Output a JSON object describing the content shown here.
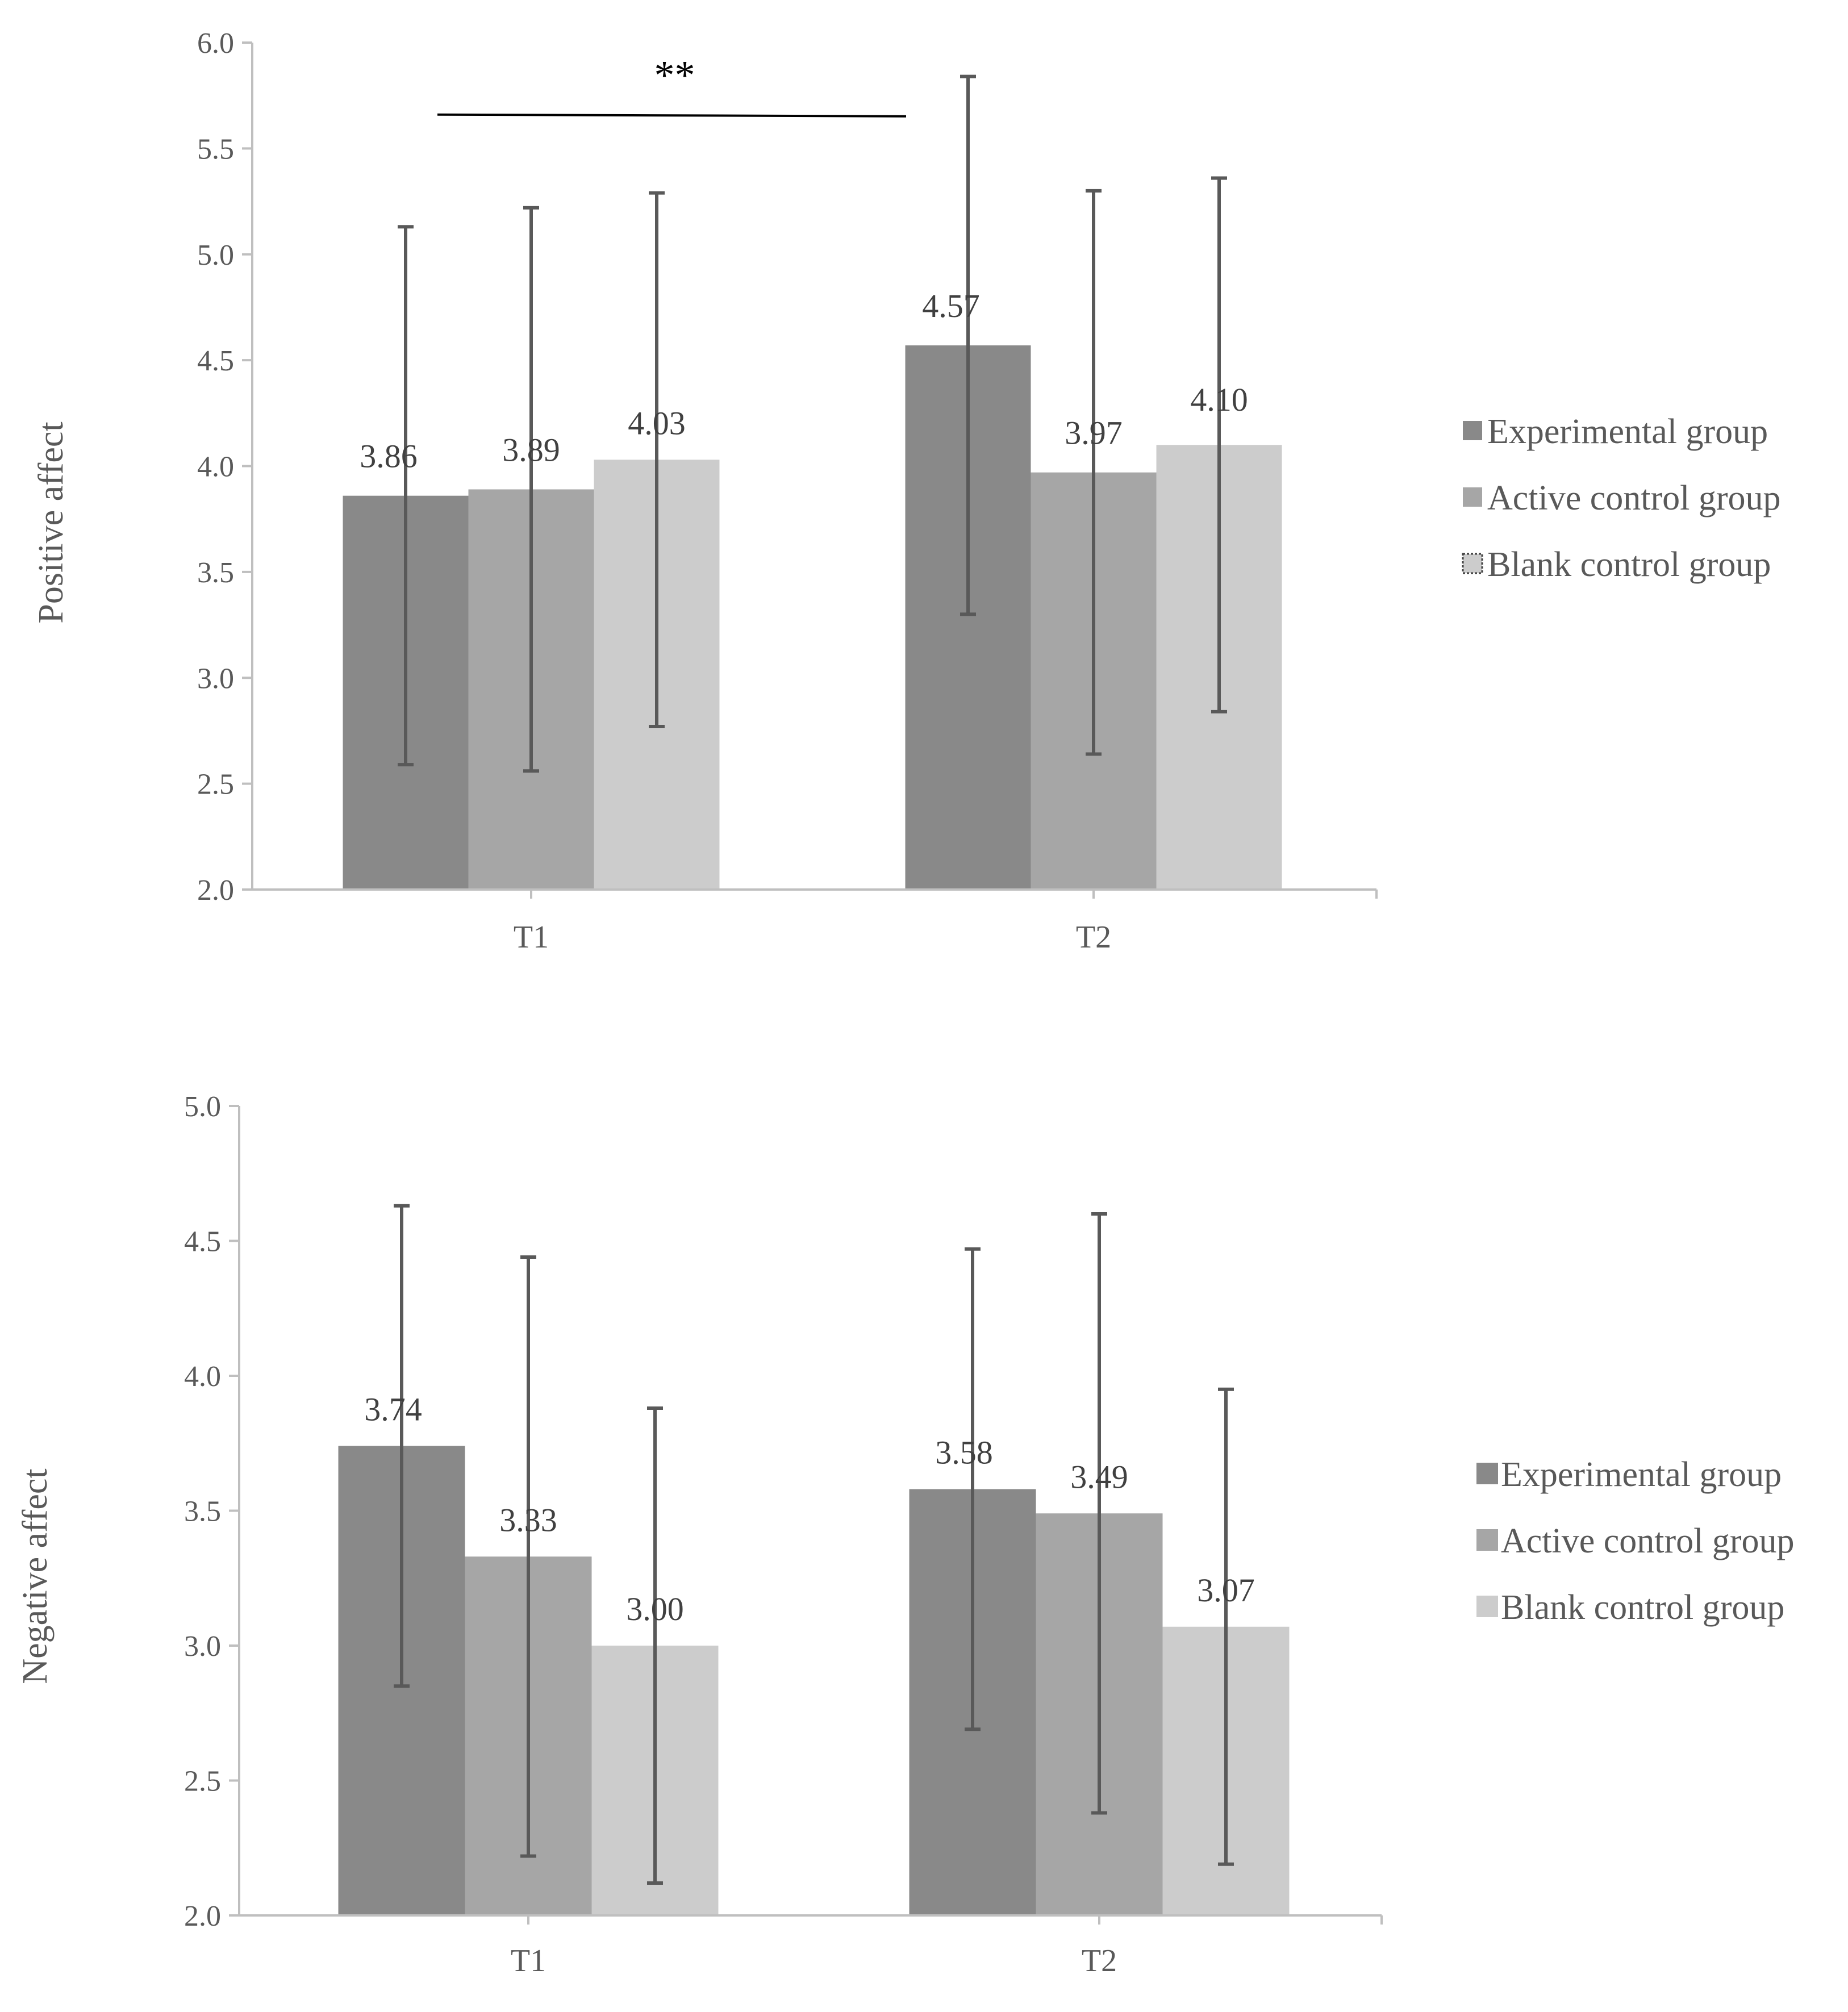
{
  "chart_data": [
    {
      "type": "bar",
      "ylabel": "Positive affect",
      "xlabel": "",
      "ylim": [
        2.0,
        6.0
      ],
      "yticks": [
        "2.0",
        "2.5",
        "3.0",
        "3.5",
        "4.0",
        "4.5",
        "5.0",
        "5.5",
        "6.0"
      ],
      "categories": [
        "T1",
        "T2"
      ],
      "series": [
        {
          "name": "Experimental group",
          "color": "#898989",
          "values": [
            3.86,
            4.57
          ],
          "labels": [
            "3.86",
            "4.57"
          ],
          "err_low": [
            2.59,
            3.3
          ],
          "err_high": [
            5.13,
            5.84
          ]
        },
        {
          "name": "Active control group",
          "color": "#a6a6a6",
          "values": [
            3.89,
            3.97
          ],
          "labels": [
            "3.89",
            "3.97"
          ],
          "err_low": [
            2.56,
            2.64
          ],
          "err_high": [
            5.22,
            5.3
          ]
        },
        {
          "name": "Blank control group",
          "color": "#cccccc",
          "values": [
            4.03,
            4.1
          ],
          "labels": [
            "4.03",
            "4.10"
          ],
          "err_low": [
            2.77,
            2.84
          ],
          "err_high": [
            5.29,
            5.36
          ]
        }
      ],
      "significance": {
        "label": "**",
        "from": "T1 Experimental group",
        "to": "T2 Experimental group",
        "level": 5.66
      },
      "legend": [
        "Experimental group",
        "Active control group",
        "Blank control group"
      ],
      "legend_position": "right"
    },
    {
      "type": "bar",
      "ylabel": "Negative affect",
      "xlabel": "",
      "ylim": [
        2.0,
        5.0
      ],
      "yticks": [
        "2.0",
        "2.5",
        "3.0",
        "3.5",
        "4.0",
        "4.5",
        "5.0"
      ],
      "categories": [
        "T1",
        "T2"
      ],
      "series": [
        {
          "name": "Experimental group",
          "color": "#898989",
          "values": [
            3.74,
            3.58
          ],
          "labels": [
            "3.74",
            "3.58"
          ],
          "err_low": [
            2.85,
            2.69
          ],
          "err_high": [
            4.63,
            4.47
          ]
        },
        {
          "name": "Active control group",
          "color": "#a6a6a6",
          "values": [
            3.33,
            3.49
          ],
          "labels": [
            "3.33",
            "3.49"
          ],
          "err_low": [
            2.22,
            2.38
          ],
          "err_high": [
            4.44,
            4.6
          ]
        },
        {
          "name": "Blank control group",
          "color": "#cccccc",
          "values": [
            3.0,
            3.07
          ],
          "labels": [
            "3.00",
            "3.07"
          ],
          "err_low": [
            2.12,
            2.19
          ],
          "err_high": [
            3.88,
            3.95
          ]
        }
      ],
      "legend": [
        "Experimental group",
        "Active control group",
        "Blank control group"
      ],
      "legend_position": "right"
    }
  ]
}
